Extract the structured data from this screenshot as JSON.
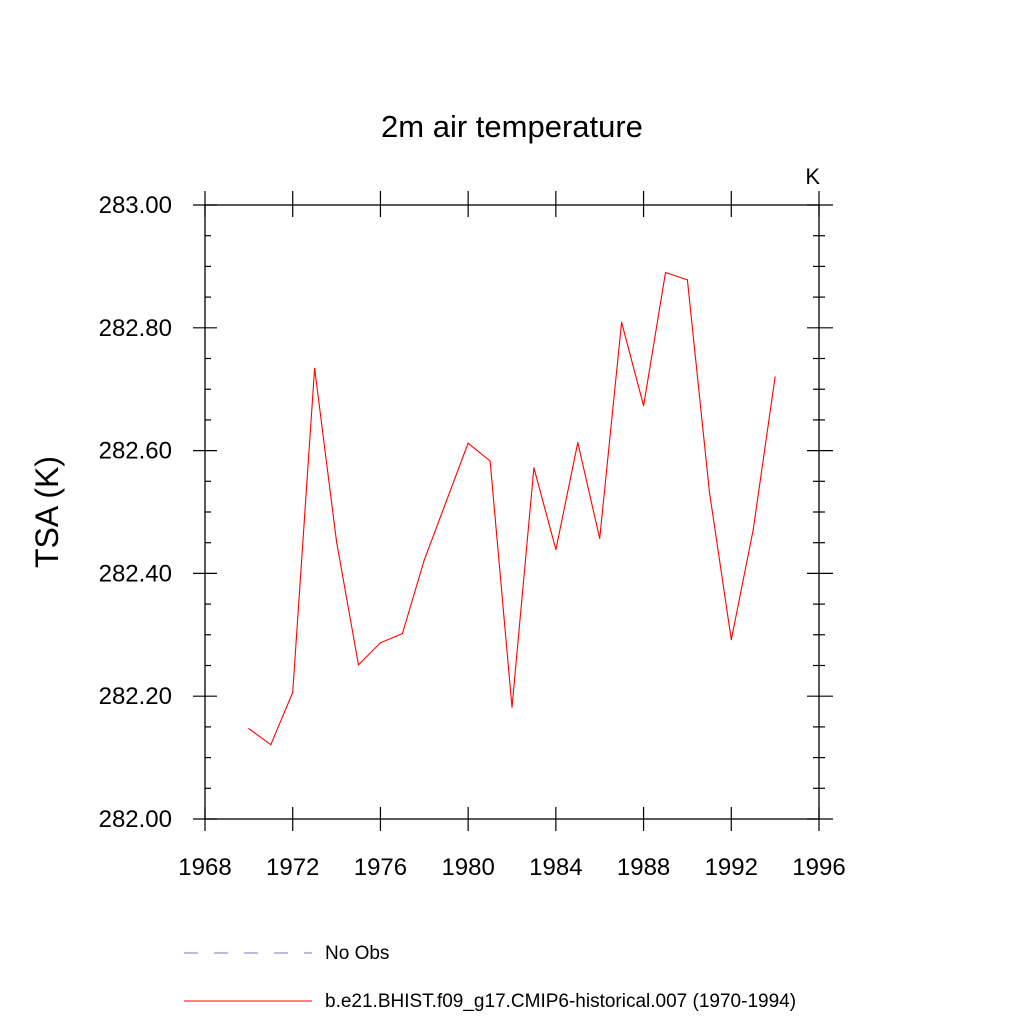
{
  "chart_data": {
    "type": "line",
    "title": "2m air temperature",
    "unit_label": "K",
    "xlabel": "",
    "ylabel": "TSA  (K)",
    "xlim": [
      1968,
      1996
    ],
    "ylim": [
      282.0,
      283.0
    ],
    "x_ticks": [
      1968,
      1972,
      1976,
      1980,
      1984,
      1988,
      1992,
      1996
    ],
    "x_tick_labels": [
      "1968",
      "1972",
      "1976",
      "1980",
      "1984",
      "1988",
      "1992",
      "1996"
    ],
    "y_ticks": [
      282.0,
      282.2,
      282.4,
      282.6,
      282.8,
      283.0
    ],
    "y_tick_labels": [
      "282.00",
      "282.20",
      "282.40",
      "282.60",
      "282.80",
      "283.00"
    ],
    "grid": false,
    "legend_position": "bottom",
    "series": [
      {
        "name": "No Obs",
        "color": "#7777cc",
        "style": "dashed",
        "x": [],
        "y": []
      },
      {
        "name": "b.e21.BHIST.f09_g17.CMIP6-historical.007 (1970-1994)",
        "color": "#ff0000",
        "style": "solid",
        "x": [
          1970,
          1971,
          1972,
          1973,
          1974,
          1975,
          1976,
          1977,
          1978,
          1979,
          1980,
          1981,
          1982,
          1983,
          1984,
          1985,
          1986,
          1987,
          1988,
          1989,
          1990,
          1991,
          1992,
          1993,
          1994
        ],
        "y": [
          282.147,
          282.121,
          282.206,
          282.734,
          282.451,
          282.251,
          282.287,
          282.302,
          282.422,
          282.517,
          282.612,
          282.583,
          282.182,
          282.572,
          282.439,
          282.613,
          282.457,
          282.809,
          282.673,
          282.89,
          282.878,
          282.533,
          282.292,
          282.471,
          282.72
        ]
      }
    ]
  }
}
